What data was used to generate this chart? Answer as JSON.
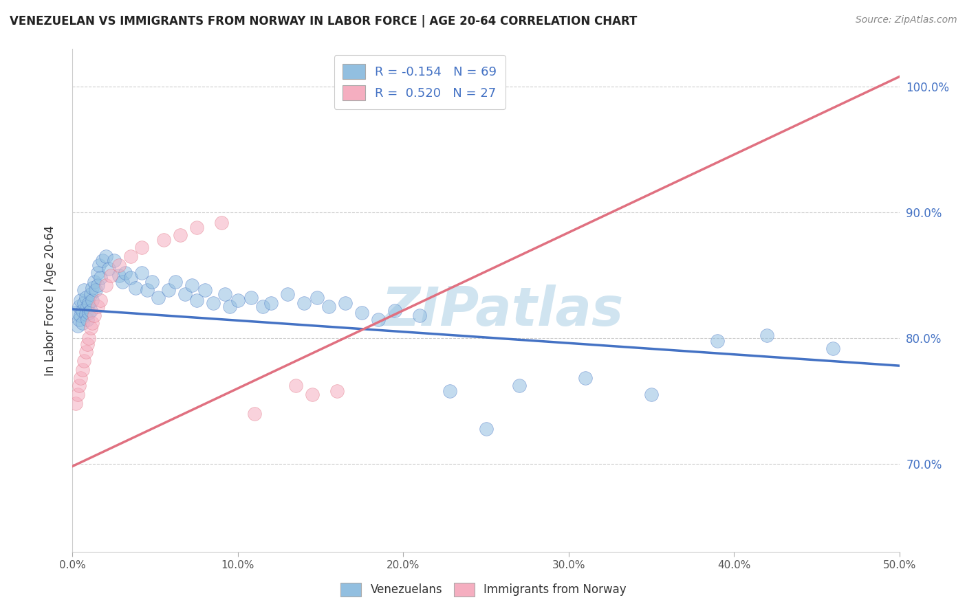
{
  "title": "VENEZUELAN VS IMMIGRANTS FROM NORWAY IN LABOR FORCE | AGE 20-64 CORRELATION CHART",
  "source": "Source: ZipAtlas.com",
  "ylabel": "In Labor Force | Age 20-64",
  "xlim": [
    0.0,
    0.5
  ],
  "ylim": [
    0.63,
    1.03
  ],
  "xticks": [
    0.0,
    0.1,
    0.2,
    0.3,
    0.4,
    0.5
  ],
  "xtick_labels": [
    "0.0%",
    "10.0%",
    "20.0%",
    "30.0%",
    "40.0%",
    "50.0%"
  ],
  "yticks": [
    0.7,
    0.8,
    0.9,
    1.0
  ],
  "right_ytick_labels": [
    "70.0%",
    "80.0%",
    "90.0%",
    "100.0%"
  ],
  "venezuelan_R": -0.154,
  "venezuelan_N": 69,
  "norway_R": 0.52,
  "norway_N": 27,
  "blue_color": "#92bfe0",
  "pink_color": "#f5aec0",
  "blue_line_color": "#4472c4",
  "pink_line_color": "#e07080",
  "watermark": "ZIPatlas",
  "watermark_color": "#d0e4f0",
  "legend_blue_label": "R = -0.154   N = 69",
  "legend_pink_label": "R =  0.520   N = 27",
  "venezuelan_x": [
    0.002,
    0.003,
    0.004,
    0.004,
    0.005,
    0.005,
    0.006,
    0.006,
    0.007,
    0.007,
    0.008,
    0.008,
    0.009,
    0.009,
    0.01,
    0.01,
    0.011,
    0.011,
    0.012,
    0.012,
    0.013,
    0.014,
    0.015,
    0.015,
    0.016,
    0.017,
    0.018,
    0.02,
    0.022,
    0.025,
    0.028,
    0.03,
    0.032,
    0.035,
    0.038,
    0.042,
    0.045,
    0.048,
    0.052,
    0.058,
    0.062,
    0.068,
    0.072,
    0.075,
    0.08,
    0.085,
    0.092,
    0.095,
    0.1,
    0.108,
    0.115,
    0.12,
    0.13,
    0.14,
    0.148,
    0.155,
    0.165,
    0.175,
    0.185,
    0.195,
    0.21,
    0.228,
    0.25,
    0.27,
    0.31,
    0.35,
    0.39,
    0.42,
    0.46
  ],
  "venezuelan_y": [
    0.82,
    0.81,
    0.815,
    0.825,
    0.818,
    0.83,
    0.822,
    0.812,
    0.828,
    0.838,
    0.819,
    0.832,
    0.825,
    0.815,
    0.828,
    0.82,
    0.835,
    0.822,
    0.83,
    0.84,
    0.845,
    0.838,
    0.842,
    0.852,
    0.858,
    0.848,
    0.862,
    0.865,
    0.855,
    0.862,
    0.85,
    0.845,
    0.852,
    0.848,
    0.84,
    0.852,
    0.838,
    0.845,
    0.832,
    0.838,
    0.845,
    0.835,
    0.842,
    0.83,
    0.838,
    0.828,
    0.835,
    0.825,
    0.83,
    0.832,
    0.825,
    0.828,
    0.835,
    0.828,
    0.832,
    0.825,
    0.828,
    0.82,
    0.815,
    0.822,
    0.818,
    0.758,
    0.728,
    0.762,
    0.768,
    0.755,
    0.798,
    0.802,
    0.792
  ],
  "norway_x": [
    0.002,
    0.003,
    0.004,
    0.005,
    0.006,
    0.007,
    0.008,
    0.009,
    0.01,
    0.011,
    0.012,
    0.013,
    0.015,
    0.017,
    0.02,
    0.023,
    0.028,
    0.035,
    0.042,
    0.055,
    0.065,
    0.075,
    0.09,
    0.11,
    0.135,
    0.145,
    0.16
  ],
  "norway_y": [
    0.748,
    0.755,
    0.762,
    0.768,
    0.775,
    0.782,
    0.789,
    0.795,
    0.8,
    0.808,
    0.812,
    0.818,
    0.825,
    0.83,
    0.842,
    0.85,
    0.858,
    0.865,
    0.872,
    0.878,
    0.882,
    0.888,
    0.892,
    0.74,
    0.762,
    0.755,
    0.758
  ]
}
